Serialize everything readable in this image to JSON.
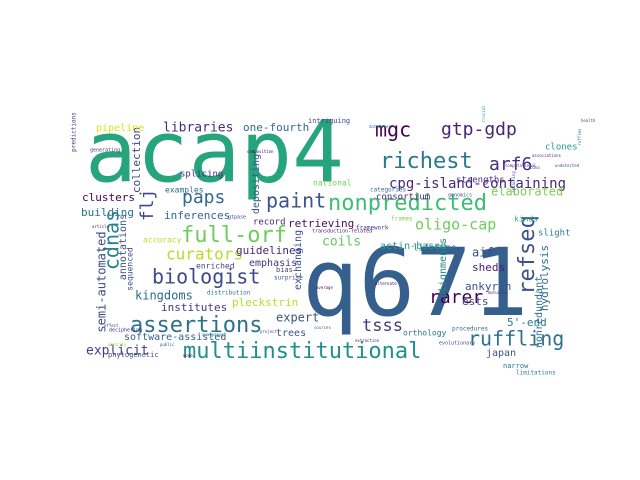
{
  "cloud": {
    "words": [
      {
        "text": "acap4",
        "color": "#26a47c"
      },
      {
        "text": "q671",
        "color": "#355f8d"
      },
      {
        "text": "multiinstitutional",
        "color": "#21908d"
      },
      {
        "text": "nonpredicted",
        "color": "#3fbc73"
      },
      {
        "text": "assertions",
        "color": "#2d718e"
      },
      {
        "text": "full-orf",
        "color": "#6cce59"
      },
      {
        "text": "richest",
        "color": "#2a788e"
      },
      {
        "text": "paint",
        "color": "#3b528b"
      },
      {
        "text": "gtp-gdp",
        "color": "#482475"
      },
      {
        "text": "biologist",
        "color": "#3e4989"
      },
      {
        "text": "refseq",
        "color": "#3b528b"
      },
      {
        "text": "ruffling",
        "color": "#2c728e"
      },
      {
        "text": "mgc",
        "color": "#440154"
      },
      {
        "text": "arf6",
        "color": "#472d7b"
      },
      {
        "text": "cdnas",
        "color": "#25838e"
      },
      {
        "text": "paps",
        "color": "#31688e"
      },
      {
        "text": "rarer",
        "color": "#440154"
      },
      {
        "text": "tsss",
        "color": "#453781"
      },
      {
        "text": "curators",
        "color": "#b5de2b"
      },
      {
        "text": "flj",
        "color": "#3e4989"
      },
      {
        "text": "cpg-island-containing",
        "color": "#482878"
      },
      {
        "text": "oligo-cap",
        "color": "#6ece58"
      },
      {
        "text": "elaborated",
        "color": "#7ad151"
      },
      {
        "text": "kingdoms",
        "color": "#31688e"
      },
      {
        "text": "coils",
        "color": "#5ec962"
      },
      {
        "text": "explicit",
        "color": "#433e85"
      },
      {
        "text": "libraries",
        "color": "#472c7a"
      },
      {
        "text": "semi-automated",
        "color": "#3e4a89"
      },
      {
        "text": "expert",
        "color": "#39558c"
      },
      {
        "text": "aif",
        "color": "#3d4e8a"
      },
      {
        "text": "ests",
        "color": "#3f4788"
      },
      {
        "text": "5'-end",
        "color": "#2a788e"
      },
      {
        "text": "one-fourth",
        "color": "#31688e"
      },
      {
        "text": "collection",
        "color": "#414487"
      },
      {
        "text": "inferences",
        "color": "#31688e"
      },
      {
        "text": "institutes",
        "color": "#443983"
      },
      {
        "text": "guidelines",
        "color": "#482878"
      },
      {
        "text": "retrieving",
        "color": "#470e61"
      },
      {
        "text": "actin-based",
        "color": "#1f9e89"
      },
      {
        "text": "sheds",
        "color": "#481c6e"
      },
      {
        "text": "ankyrin",
        "color": "#3b528b"
      },
      {
        "text": "alignments",
        "color": "#25858e"
      },
      {
        "text": "hydrolysis",
        "color": "#2e6e8e"
      },
      {
        "text": "nonredundant",
        "color": "#2d708e"
      },
      {
        "text": "exchanging",
        "color": "#3b528b"
      },
      {
        "text": "pleckstrin",
        "color": "#b5de2b"
      },
      {
        "text": "software-assisted",
        "color": "#34618d"
      },
      {
        "text": "clusters",
        "color": "#440154"
      },
      {
        "text": "building",
        "color": "#2c728e"
      },
      {
        "text": "annotations",
        "color": "#3c4f8a"
      },
      {
        "text": "pipeline",
        "color": "#dde318"
      },
      {
        "text": "depositing",
        "color": "#38598c"
      },
      {
        "text": "emphasis",
        "color": "#453882"
      },
      {
        "text": "record",
        "color": "#482677"
      },
      {
        "text": "lifetime",
        "color": "#2c738e"
      },
      {
        "text": "consortium",
        "color": "#482374"
      },
      {
        "text": "strengths",
        "color": "#46307e"
      },
      {
        "text": "clones",
        "color": "#1f9a8a"
      },
      {
        "text": "splicing",
        "color": "#482979"
      },
      {
        "text": "trees",
        "color": "#39568c"
      },
      {
        "text": "japan",
        "color": "#3a538b"
      },
      {
        "text": "slight",
        "color": "#287c8e"
      },
      {
        "text": "kinds",
        "color": "#2ab07f"
      },
      {
        "text": "enriched",
        "color": "#3e4a89"
      },
      {
        "text": "sequenced",
        "color": "#3e4c8a"
      },
      {
        "text": "national",
        "color": "#6ece58"
      },
      {
        "text": "examples",
        "color": "#31688e"
      },
      {
        "text": "intriguing",
        "color": "#3e4989"
      },
      {
        "text": "narrow",
        "color": "#2a778e"
      },
      {
        "text": "orthology",
        "color": "#2d718e"
      },
      {
        "text": "accuracy",
        "color": "#b8de29"
      },
      {
        "text": "phylogenetic",
        "color": "#3f4889"
      },
      {
        "text": "bias",
        "color": "#414487"
      },
      {
        "text": "categories",
        "color": "#2c728e"
      },
      {
        "text": "procedures",
        "color": "#2d708e"
      },
      {
        "text": "limitations",
        "color": "#25848e"
      },
      {
        "text": "distribution",
        "color": "#2a788e"
      },
      {
        "text": "surprise",
        "color": "#3b528b"
      },
      {
        "text": "frames",
        "color": "#7ad151"
      },
      {
        "text": "framework",
        "color": "#414487"
      },
      {
        "text": "evolutionary",
        "color": "#3f4788"
      },
      {
        "text": "predictions",
        "color": "#46337f"
      },
      {
        "text": "generating",
        "color": "#453781"
      },
      {
        "text": "databases",
        "color": "#2a788e"
      },
      {
        "text": "genomics",
        "color": "#3b528b"
      },
      {
        "text": "transduction-related",
        "color": "#482071"
      },
      {
        "text": "deciphering",
        "color": "#46327e"
      },
      {
        "text": "gtpase",
        "color": "#3e4989"
      },
      {
        "text": "article",
        "color": "#482173"
      },
      {
        "text": "public",
        "color": "#39568c"
      },
      {
        "text": "health",
        "color": "#3e4989"
      },
      {
        "text": "alternate",
        "color": "#440154"
      },
      {
        "text": "sources",
        "color": "#355f8d"
      },
      {
        "text": "average",
        "color": "#46085c"
      },
      {
        "text": "project",
        "color": "#3b528b"
      },
      {
        "text": "mutually",
        "color": "#472d7b"
      },
      {
        "text": "crucial",
        "color": "#20a486"
      },
      {
        "text": "composition",
        "color": "#440154"
      },
      {
        "text": "extraction",
        "color": "#482878"
      },
      {
        "text": "associations",
        "color": "#46337f"
      },
      {
        "text": "computational",
        "color": "#3e4989"
      },
      {
        "text": "undetected",
        "color": "#3b528b"
      },
      {
        "text": "ruffles",
        "color": "#2d708e"
      },
      {
        "text": "retaining",
        "color": "#3e4989"
      },
      {
        "text": "identify",
        "color": "#a0da39"
      },
      {
        "text": "effect",
        "color": "#453781"
      },
      {
        "text": "mode",
        "color": "#482173"
      },
      {
        "text": "analyzing",
        "color": "#2a788e"
      },
      {
        "text": "cdna",
        "color": "#3b528b"
      }
    ]
  }
}
